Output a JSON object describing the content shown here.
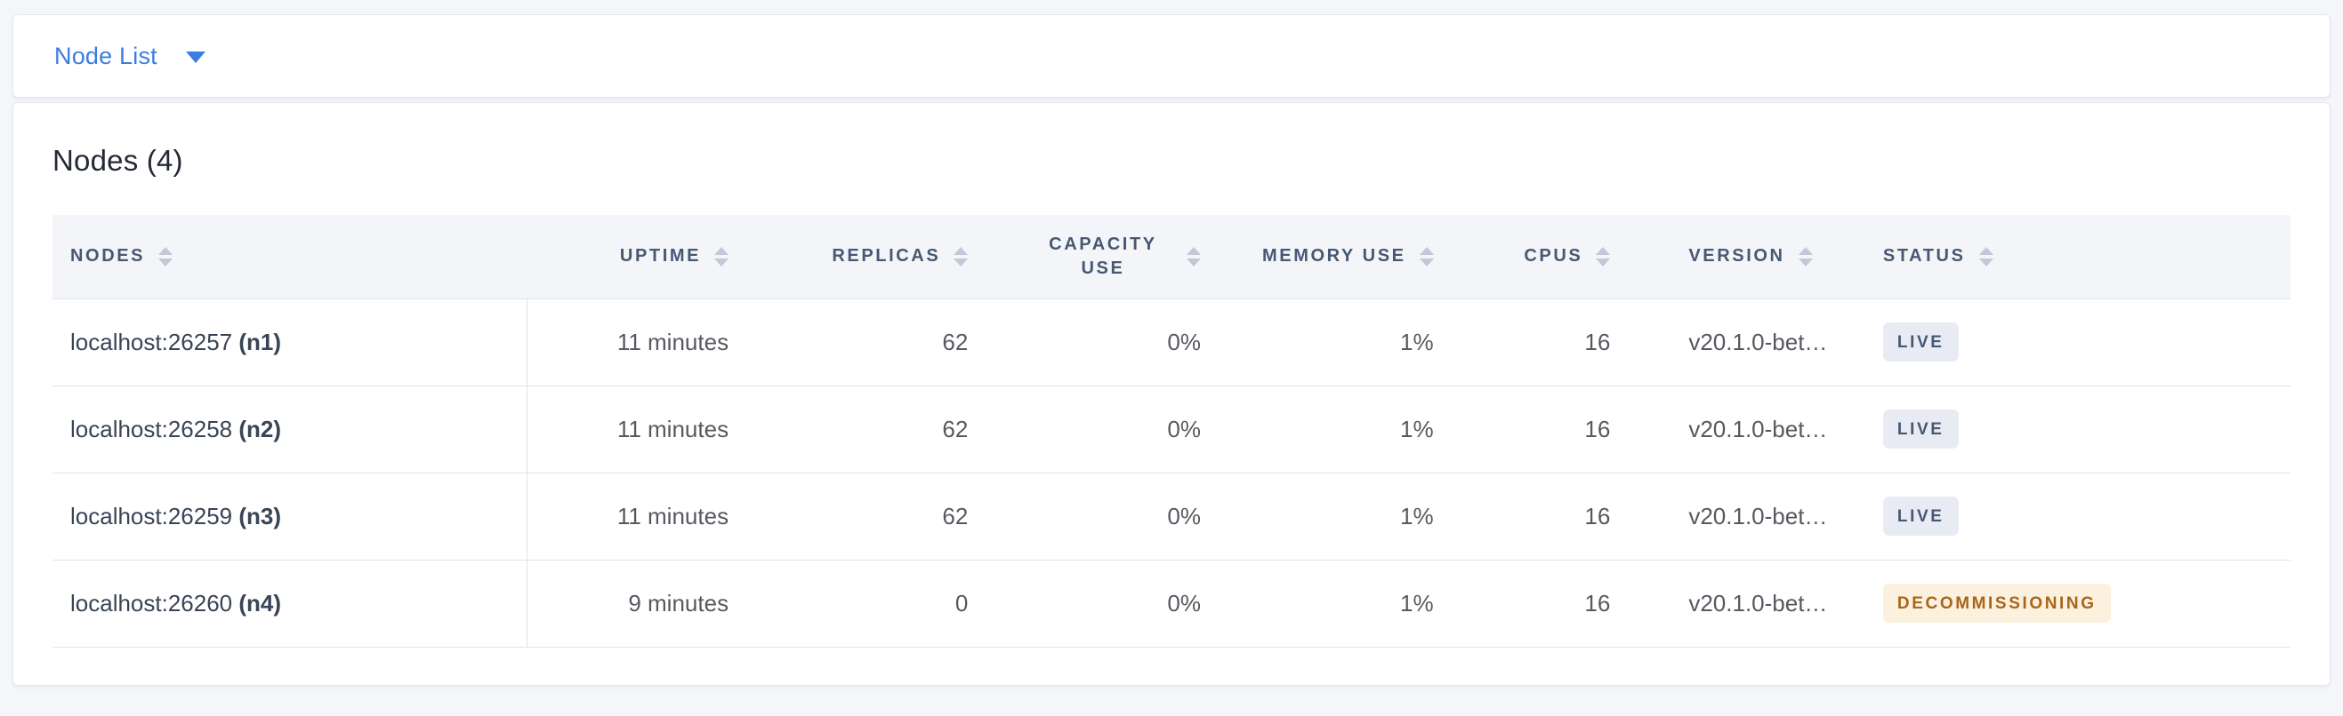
{
  "view_selector": {
    "label": "Node List",
    "caret_icon": "caret-down-icon"
  },
  "panel": {
    "title": "Nodes (4)"
  },
  "table": {
    "columns": [
      {
        "id": "nodes",
        "label": "NODES",
        "align": "left"
      },
      {
        "id": "uptime",
        "label": "UPTIME",
        "align": "right"
      },
      {
        "id": "replicas",
        "label": "REPLICAS",
        "align": "right"
      },
      {
        "id": "capacity_use",
        "label": "CAPACITY USE",
        "align": "right"
      },
      {
        "id": "memory_use",
        "label": "MEMORY USE",
        "align": "right"
      },
      {
        "id": "cpus",
        "label": "CPUS",
        "align": "right"
      },
      {
        "id": "version",
        "label": "VERSION",
        "align": "left"
      },
      {
        "id": "status",
        "label": "STATUS",
        "align": "left"
      }
    ],
    "rows": [
      {
        "address": "localhost:26257",
        "node_id": "(n1)",
        "uptime": "11 minutes",
        "replicas": "62",
        "capacity_use": "0%",
        "memory_use": "1%",
        "cpus": "16",
        "version": "v20.1.0-bet…",
        "status": "LIVE"
      },
      {
        "address": "localhost:26258",
        "node_id": "(n2)",
        "uptime": "11 minutes",
        "replicas": "62",
        "capacity_use": "0%",
        "memory_use": "1%",
        "cpus": "16",
        "version": "v20.1.0-bet…",
        "status": "LIVE"
      },
      {
        "address": "localhost:26259",
        "node_id": "(n3)",
        "uptime": "11 minutes",
        "replicas": "62",
        "capacity_use": "0%",
        "memory_use": "1%",
        "cpus": "16",
        "version": "v20.1.0-bet…",
        "status": "LIVE"
      },
      {
        "address": "localhost:26260",
        "node_id": "(n4)",
        "uptime": "9 minutes",
        "replicas": "0",
        "capacity_use": "0%",
        "memory_use": "1%",
        "cpus": "16",
        "version": "v20.1.0-bet…",
        "status": "DECOMMISSIONING"
      }
    ]
  },
  "colors": {
    "accent_blue": "#3b7de3",
    "page_background": "#f4f6fa",
    "header_background": "#f4f5f9",
    "header_text": "#475872",
    "cell_text": "#56595f",
    "node_text": "#394455",
    "border": "#e0e3ed",
    "badge_live_bg": "#e8ebf4",
    "badge_live_text": "#475872",
    "badge_decommissioning_bg": "#fbf1de",
    "badge_decommissioning_text": "#aa6519"
  }
}
